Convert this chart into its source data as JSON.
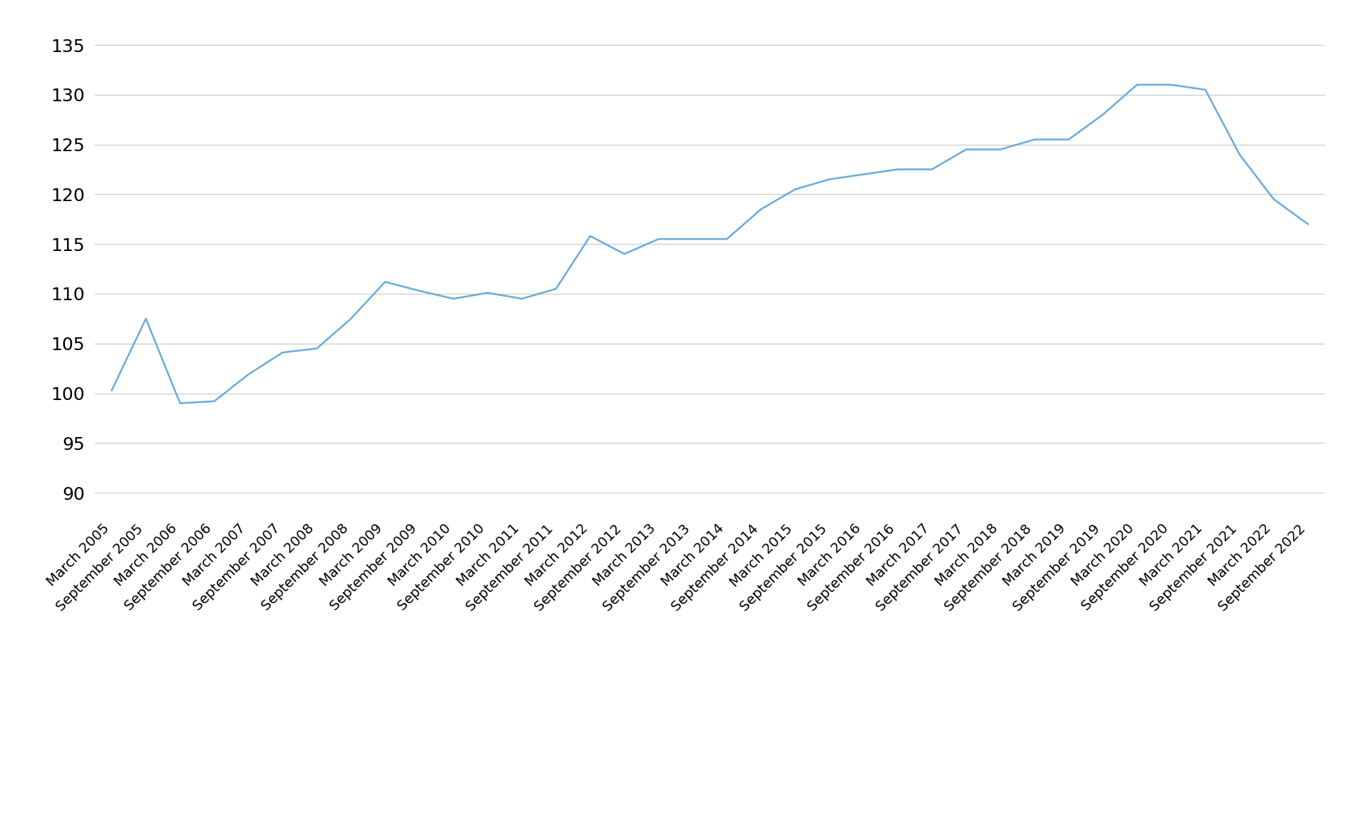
{
  "labels": [
    "March 2005",
    "September 2005",
    "March 2006",
    "September 2006",
    "March 2007",
    "September 2007",
    "March 2008",
    "September 2008",
    "March 2009",
    "September 2009",
    "March 2010",
    "September 2010",
    "March 2011",
    "September 2011",
    "March 2012",
    "September 2012",
    "March 2013",
    "September 2013",
    "March 2014",
    "September 2014",
    "March 2015",
    "September 2015",
    "March 2016",
    "September 2016",
    "March 2017",
    "September 2017",
    "March 2018",
    "September 2018",
    "March 2019",
    "September 2019",
    "March 2020",
    "September 2020",
    "March 2021",
    "September 2021",
    "March 2022",
    "September 2022"
  ],
  "values": [
    100.3,
    107.5,
    99.0,
    99.2,
    101.9,
    104.1,
    104.5,
    107.5,
    111.2,
    110.3,
    109.5,
    110.1,
    109.5,
    110.5,
    115.8,
    114.0,
    115.5,
    115.5,
    115.5,
    118.5,
    120.5,
    121.5,
    122.0,
    122.5,
    122.5,
    124.5,
    124.5,
    125.5,
    125.5,
    128.0,
    131.0,
    131.0,
    130.5,
    124.0,
    119.5,
    117.0
  ],
  "line_color": "#6aabdc",
  "line_width": 1.8,
  "yticks": [
    90,
    95,
    100,
    105,
    110,
    115,
    120,
    125,
    130,
    135
  ],
  "ylim": [
    87.5,
    137
  ],
  "background_color": "#ffffff",
  "grid_color": "#c8c8c8",
  "y_tick_fontsize": 18,
  "x_tick_fontsize": 14
}
